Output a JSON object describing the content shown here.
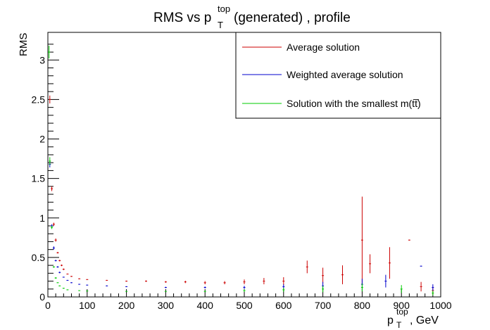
{
  "chart_data": {
    "type": "scatter",
    "title": {
      "main": "RMS vs p",
      "sup": "top",
      "sub": "T",
      "rest": " (generated) , profile"
    },
    "xlabel": {
      "main": "p",
      "sup": "top",
      "sub": "T",
      "rest": ", GeV"
    },
    "ylabel": "RMS",
    "xlim": [
      0,
      1000
    ],
    "ylim": [
      0,
      3.35
    ],
    "x_ticks": [
      0,
      100,
      200,
      300,
      400,
      500,
      600,
      700,
      800,
      900,
      1000
    ],
    "y_ticks": [
      0,
      0.5,
      1,
      1.5,
      2,
      2.5,
      3
    ],
    "x_tick_labels": [
      "0",
      "100",
      "200",
      "300",
      "400",
      "500",
      "600",
      "700",
      "800",
      "900",
      "1000"
    ],
    "y_tick_labels": [
      "0",
      "0.5",
      "1",
      "1.5",
      "2",
      "2.5",
      "3"
    ],
    "grid": false,
    "legend_position": "top-right",
    "series": [
      {
        "name": "Average solution",
        "color": "#cc0000",
        "points": [
          {
            "x": 5,
            "y": 2.5,
            "err": 0.05
          },
          {
            "x": 10,
            "y": 1.37,
            "err": 0.03
          },
          {
            "x": 15,
            "y": 0.92,
            "err": 0.02
          },
          {
            "x": 20,
            "y": 0.72,
            "err": 0.02
          },
          {
            "x": 25,
            "y": 0.56,
            "err": 0.01
          },
          {
            "x": 30,
            "y": 0.46,
            "err": 0.01
          },
          {
            "x": 35,
            "y": 0.4,
            "err": 0.01
          },
          {
            "x": 40,
            "y": 0.35,
            "err": 0.01
          },
          {
            "x": 50,
            "y": 0.29,
            "err": 0.005
          },
          {
            "x": 60,
            "y": 0.26,
            "err": 0.005
          },
          {
            "x": 80,
            "y": 0.23,
            "err": 0.005
          },
          {
            "x": 100,
            "y": 0.22,
            "err": 0.005
          },
          {
            "x": 150,
            "y": 0.21,
            "err": 0.005
          },
          {
            "x": 200,
            "y": 0.2,
            "err": 0.006
          },
          {
            "x": 250,
            "y": 0.2,
            "err": 0.008
          },
          {
            "x": 300,
            "y": 0.19,
            "err": 0.01
          },
          {
            "x": 350,
            "y": 0.19,
            "err": 0.015
          },
          {
            "x": 400,
            "y": 0.18,
            "err": 0.02
          },
          {
            "x": 450,
            "y": 0.18,
            "err": 0.02
          },
          {
            "x": 500,
            "y": 0.19,
            "err": 0.03
          },
          {
            "x": 550,
            "y": 0.2,
            "err": 0.04
          },
          {
            "x": 600,
            "y": 0.2,
            "err": 0.05
          },
          {
            "x": 660,
            "y": 0.38,
            "err": 0.08
          },
          {
            "x": 700,
            "y": 0.27,
            "err": 0.1
          },
          {
            "x": 750,
            "y": 0.28,
            "err": 0.12
          },
          {
            "x": 800,
            "y": 0.72,
            "err": 0.55
          },
          {
            "x": 820,
            "y": 0.42,
            "err": 0.12
          },
          {
            "x": 870,
            "y": 0.43,
            "err": 0.2
          },
          {
            "x": 920,
            "y": 0.72,
            "err": 0.005
          },
          {
            "x": 950,
            "y": 0.13,
            "err": 0.06
          },
          {
            "x": 980,
            "y": 0.08,
            "err": 0.05
          }
        ]
      },
      {
        "name": "Weighted average solution",
        "color": "#0000cc",
        "points": [
          {
            "x": 5,
            "y": 1.68,
            "err": 0.04
          },
          {
            "x": 10,
            "y": 0.9,
            "err": 0.02
          },
          {
            "x": 15,
            "y": 0.62,
            "err": 0.02
          },
          {
            "x": 20,
            "y": 0.46,
            "err": 0.01
          },
          {
            "x": 25,
            "y": 0.38,
            "err": 0.01
          },
          {
            "x": 30,
            "y": 0.31,
            "err": 0.01
          },
          {
            "x": 40,
            "y": 0.25,
            "err": 0.005
          },
          {
            "x": 50,
            "y": 0.21,
            "err": 0.005
          },
          {
            "x": 60,
            "y": 0.18,
            "err": 0.005
          },
          {
            "x": 80,
            "y": 0.16,
            "err": 0.005
          },
          {
            "x": 100,
            "y": 0.15,
            "err": 0.005
          },
          {
            "x": 150,
            "y": 0.14,
            "err": 0.005
          },
          {
            "x": 200,
            "y": 0.13,
            "err": 0.005
          },
          {
            "x": 300,
            "y": 0.12,
            "err": 0.008
          },
          {
            "x": 400,
            "y": 0.12,
            "err": 0.012
          },
          {
            "x": 500,
            "y": 0.12,
            "err": 0.02
          },
          {
            "x": 600,
            "y": 0.13,
            "err": 0.03
          },
          {
            "x": 700,
            "y": 0.14,
            "err": 0.05
          },
          {
            "x": 800,
            "y": 0.16,
            "err": 0.07
          },
          {
            "x": 860,
            "y": 0.2,
            "err": 0.08
          },
          {
            "x": 950,
            "y": 0.39,
            "err": 0.005
          },
          {
            "x": 980,
            "y": 0.12,
            "err": 0.04
          }
        ]
      },
      {
        "name": "Solution with the smallest m(tt̅)",
        "color": "#00cc00",
        "points": [
          {
            "x": 3,
            "y": 3.1,
            "err": 0.08
          },
          {
            "x": 5,
            "y": 1.72,
            "err": 0.05
          },
          {
            "x": 10,
            "y": 0.88,
            "err": 0.02
          },
          {
            "x": 15,
            "y": 0.38,
            "err": 0.01
          },
          {
            "x": 20,
            "y": 0.24,
            "err": 0.01
          },
          {
            "x": 25,
            "y": 0.18,
            "err": 0.005
          },
          {
            "x": 30,
            "y": 0.14,
            "err": 0.005
          },
          {
            "x": 40,
            "y": 0.11,
            "err": 0.005
          },
          {
            "x": 50,
            "y": 0.09,
            "err": 0.005
          },
          {
            "x": 80,
            "y": 0.08,
            "err": 0.004
          },
          {
            "x": 100,
            "y": 0.075,
            "err": 0.004
          },
          {
            "x": 200,
            "y": 0.07,
            "err": 0.004
          },
          {
            "x": 300,
            "y": 0.07,
            "err": 0.005
          },
          {
            "x": 400,
            "y": 0.07,
            "err": 0.008
          },
          {
            "x": 500,
            "y": 0.08,
            "err": 0.015
          },
          {
            "x": 600,
            "y": 0.09,
            "err": 0.025
          },
          {
            "x": 700,
            "y": 0.1,
            "err": 0.04
          },
          {
            "x": 800,
            "y": 0.12,
            "err": 0.05
          },
          {
            "x": 900,
            "y": 0.1,
            "err": 0.05
          },
          {
            "x": 980,
            "y": 0.05,
            "err": 0.03
          }
        ]
      }
    ]
  }
}
